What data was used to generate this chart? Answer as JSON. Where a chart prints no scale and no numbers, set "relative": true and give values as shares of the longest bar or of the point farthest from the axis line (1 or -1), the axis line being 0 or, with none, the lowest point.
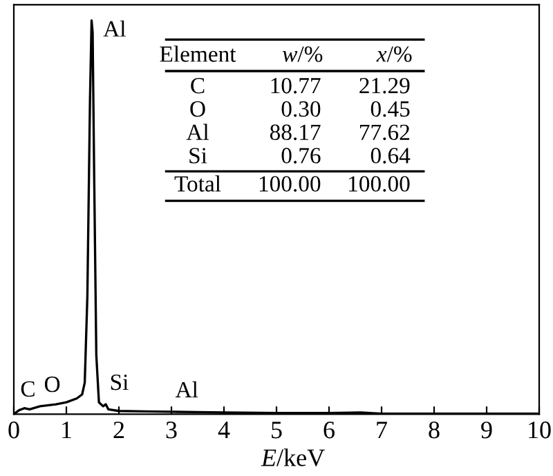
{
  "chart_data": {
    "type": "line",
    "relative": true,
    "xlabel": "E/keV",
    "xlim": [
      0,
      10
    ],
    "xticks": [
      0,
      1,
      2,
      3,
      4,
      5,
      6,
      7,
      8,
      9,
      10
    ],
    "color": "#000000",
    "grid": false,
    "x": [
      0,
      0.1,
      0.2,
      0.3,
      0.5,
      0.8,
      1.0,
      1.2,
      1.3,
      1.35,
      1.4,
      1.45,
      1.48,
      1.5,
      1.53,
      1.57,
      1.62,
      1.7,
      1.75,
      1.8,
      2.0,
      2.5,
      3.0,
      3.5,
      4.0,
      5.0,
      6.0,
      6.6,
      7.0,
      8.0,
      10.0
    ],
    "values": [
      0,
      0.01,
      0.015,
      0.012,
      0.02,
      0.025,
      0.03,
      0.04,
      0.05,
      0.08,
      0.3,
      0.8,
      1.0,
      0.97,
      0.6,
      0.15,
      0.03,
      0.02,
      0.025,
      0.012,
      0.008,
      0.007,
      0.006,
      0.005,
      0.004,
      0.003,
      0.003,
      0.004,
      0.001,
      0.001,
      0.001
    ],
    "annotations": [
      {
        "text": "C",
        "x": 0.05,
        "y": 0.008
      },
      {
        "text": "O",
        "x": 0.5,
        "y": 0.02
      },
      {
        "text": "Al",
        "x": 1.48,
        "y": 1.0
      },
      {
        "text": "Si",
        "x": 1.75,
        "y": 0.025
      },
      {
        "text": "Al",
        "x": 3.0,
        "y": 0.006
      },
      "Element",
      "w/%",
      "x/%",
      "C",
      "10.77",
      "21.29",
      "O",
      "0.30",
      "0.45",
      "Al",
      "88.17",
      "77.62",
      "Si",
      "0.76",
      "0.64",
      "Total",
      "100.00",
      "100.00"
    ]
  }
}
